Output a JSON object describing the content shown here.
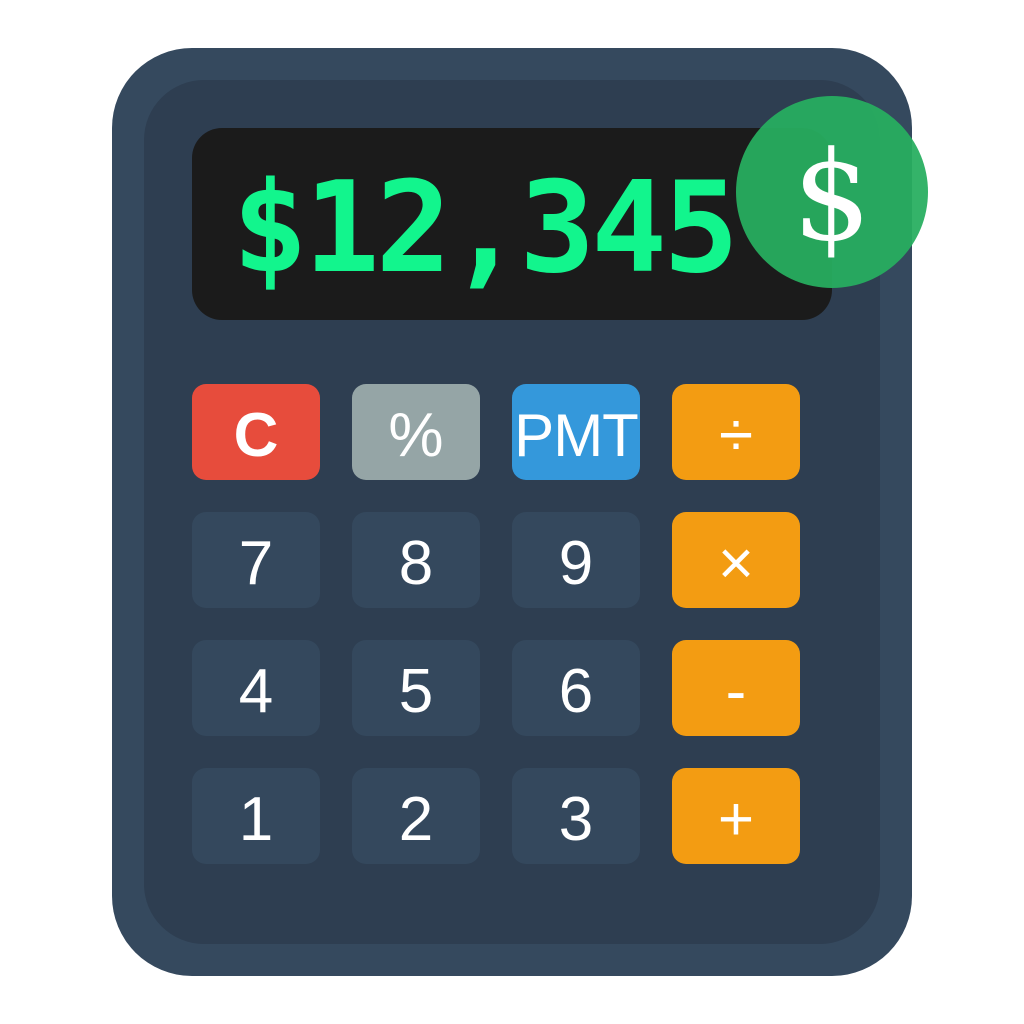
{
  "display": {
    "value": "$12,345"
  },
  "badge": {
    "symbol": "$"
  },
  "keys": {
    "clear": "C",
    "percent": "%",
    "pmt": "PMT",
    "divide": "÷",
    "seven": "7",
    "eight": "8",
    "nine": "9",
    "multiply": "×",
    "four": "4",
    "five": "5",
    "six": "6",
    "minus": "-",
    "one": "1",
    "two": "2",
    "three": "3",
    "plus": "+"
  },
  "colors": {
    "body": "#35495e",
    "face": "#2e3e51",
    "display_bg": "#1b1b1b",
    "display_text": "#12f58d",
    "badge": "#27ae60",
    "number_key": "#34485d",
    "operator_key": "#f39c12",
    "clear_key": "#e74c3c",
    "percent_key": "#95a5a6",
    "pmt_key": "#3498db"
  }
}
